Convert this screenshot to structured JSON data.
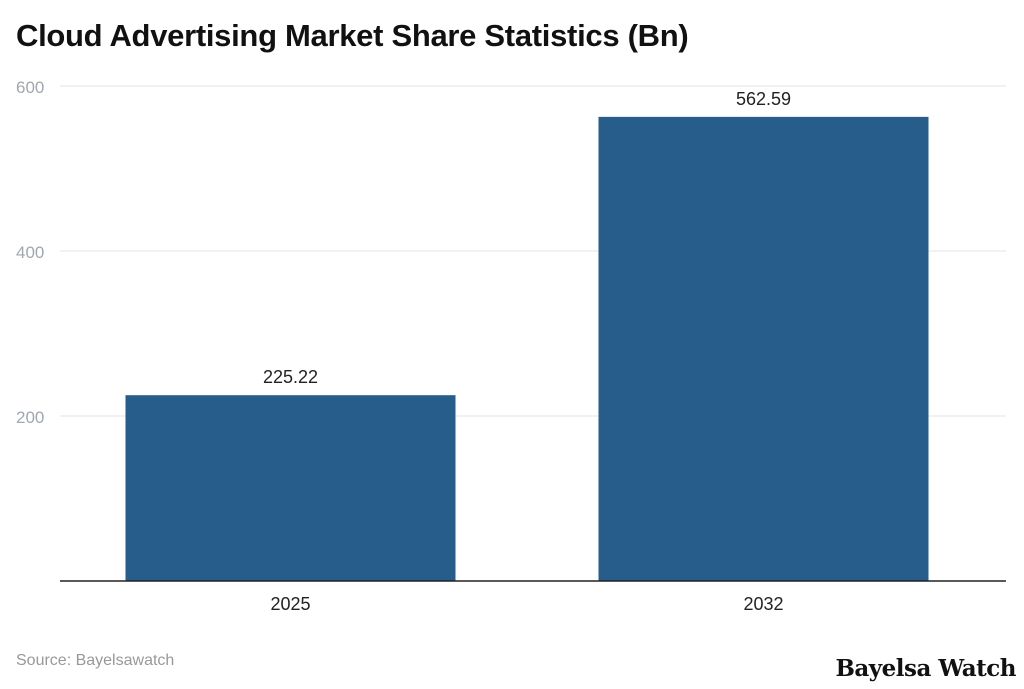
{
  "chart_data": {
    "type": "bar",
    "title": "Cloud Advertising Market Share Statistics (Bn)",
    "categories": [
      "2025",
      "2032"
    ],
    "values": [
      225.22,
      562.59
    ],
    "data_labels": [
      "225.22",
      "562.59"
    ],
    "xlabel": "",
    "ylabel": "",
    "ylim": [
      0,
      600
    ],
    "yticks": [
      200,
      400,
      600
    ],
    "grid": true,
    "bar_color": "#265d8a"
  },
  "source": "Source: Bayelsawatch",
  "logo": "Bayelsa Watch"
}
